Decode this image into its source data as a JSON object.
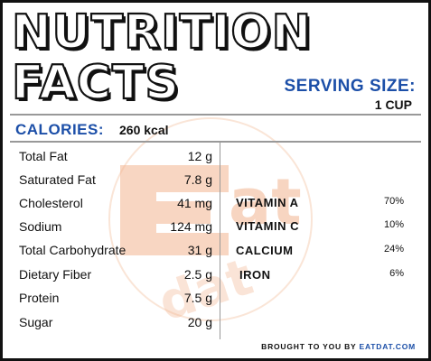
{
  "title_line1": "NUTRITION",
  "title_line2": "FACTS",
  "serving": {
    "label": "SERVING SIZE:",
    "value": "1 CUP"
  },
  "calories": {
    "label": "CALORIES:",
    "value": "260 kcal"
  },
  "nutrients": [
    {
      "name": "Total Fat",
      "amount": "12 g"
    },
    {
      "name": "Saturated Fat",
      "amount": "7.8 g"
    },
    {
      "name": "Cholesterol",
      "amount": "41 mg"
    },
    {
      "name": "Sodium",
      "amount": "124 mg"
    },
    {
      "name": "Total Carbohydrate",
      "amount": "31 g"
    },
    {
      "name": "Dietary Fiber",
      "amount": "2.5 g"
    },
    {
      "name": "Protein",
      "amount": "7.5 g"
    },
    {
      "name": "Sugar",
      "amount": "20 g"
    }
  ],
  "vitamins": [
    {
      "name": "VITAMIN A",
      "value": "70%"
    },
    {
      "name": "VITAMIN C",
      "value": "10%"
    },
    {
      "name": "CALCIUM",
      "value": "24%"
    },
    {
      "name": "IRON",
      "value": "6%"
    }
  ],
  "footer": {
    "prefix": "BROUGHT TO YOU BY ",
    "brand": "EATDAT.COM"
  },
  "watermark_text": "eat dat",
  "colors": {
    "accent": "#1c4fa8",
    "watermark": "#f2b48f",
    "border": "#111111"
  }
}
